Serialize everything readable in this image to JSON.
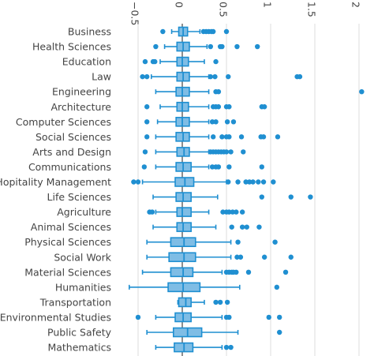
{
  "chart_data": {
    "type": "box",
    "orientation": "horizontal",
    "title": "",
    "xlabel": "",
    "ylabel": "",
    "xlim": [
      -0.62,
      2.05
    ],
    "x_ticks": [
      {
        "value": -0.5,
        "label": "−0.5"
      },
      {
        "value": 0,
        "label": "0"
      },
      {
        "value": 0.5,
        "label": "0.5"
      },
      {
        "value": 1,
        "label": "1"
      },
      {
        "value": 1.5,
        "label": "1.5"
      },
      {
        "value": 2,
        "label": "2"
      }
    ],
    "tick_position": "top",
    "tick_label_rotation": 90,
    "grid": true,
    "color": "#1f8fd1",
    "box_fill": "#7fbde5",
    "categories": [
      {
        "name": "Business",
        "whisker_low": -0.12,
        "q1": -0.04,
        "median": 0.01,
        "q3": 0.06,
        "whisker_high": 0.2,
        "outliers": [
          -0.22,
          0.24,
          0.27,
          0.3,
          0.33,
          0.35,
          0.5
        ]
      },
      {
        "name": "Health Sciences",
        "whisker_low": -0.2,
        "q1": -0.06,
        "median": 0.01,
        "q3": 0.08,
        "whisker_high": 0.28,
        "outliers": [
          -0.3,
          0.32,
          0.43,
          0.45,
          0.62,
          0.85
        ]
      },
      {
        "name": "Education",
        "whisker_low": -0.25,
        "q1": -0.06,
        "median": 0.0,
        "q3": 0.07,
        "whisker_high": 0.25,
        "outliers": [
          -0.42,
          -0.33,
          -0.31,
          0.38
        ]
      },
      {
        "name": "Law",
        "whisker_low": -0.35,
        "q1": -0.06,
        "median": 0.01,
        "q3": 0.08,
        "whisker_high": 0.3,
        "outliers": [
          -0.45,
          -0.4,
          0.32,
          0.37,
          0.52,
          1.3,
          1.33
        ]
      },
      {
        "name": "Engineering",
        "whisker_low": -0.3,
        "q1": -0.07,
        "median": 0.0,
        "q3": 0.08,
        "whisker_high": 0.3,
        "outliers": [
          0.38,
          0.41,
          2.03
        ]
      },
      {
        "name": "Architecture",
        "whisker_low": -0.25,
        "q1": -0.06,
        "median": 0.0,
        "q3": 0.07,
        "whisker_high": 0.3,
        "outliers": [
          -0.4,
          0.35,
          0.38,
          0.41,
          0.5,
          0.53,
          0.9,
          0.93
        ]
      },
      {
        "name": "Computer Sciences",
        "whisker_low": -0.28,
        "q1": -0.07,
        "median": 0.0,
        "q3": 0.08,
        "whisker_high": 0.3,
        "outliers": [
          -0.4,
          0.34,
          0.38,
          0.51,
          0.58
        ]
      },
      {
        "name": "Social Sciences",
        "whisker_low": -0.3,
        "q1": -0.07,
        "median": 0.01,
        "q3": 0.08,
        "whisker_high": 0.3,
        "outliers": [
          -0.4,
          0.35,
          0.45,
          0.5,
          0.53,
          0.67,
          0.89,
          0.92,
          1.08
        ]
      },
      {
        "name": "Arts and Design",
        "whisker_low": -0.3,
        "q1": -0.06,
        "median": 0.02,
        "q3": 0.08,
        "whisker_high": 0.3,
        "outliers": [
          -0.42,
          0.32,
          0.35,
          0.38,
          0.41,
          0.44,
          0.47,
          0.5,
          0.55,
          0.69
        ]
      },
      {
        "name": "Communications",
        "whisker_low": -0.3,
        "q1": -0.07,
        "median": 0.01,
        "q3": 0.1,
        "whisker_high": 0.3,
        "outliers": [
          -0.43,
          0.34,
          0.38,
          0.41,
          0.53,
          0.9
        ]
      },
      {
        "name": "Hopitality Management",
        "whisker_low": -0.45,
        "q1": -0.08,
        "median": 0.03,
        "q3": 0.13,
        "whisker_high": 0.5,
        "outliers": [
          -0.55,
          -0.5,
          0.52,
          0.63,
          0.72,
          0.76,
          0.8,
          0.86,
          0.92,
          1.03
        ]
      },
      {
        "name": "Life Sciences",
        "whisker_low": -0.33,
        "q1": -0.07,
        "median": 0.01,
        "q3": 0.1,
        "whisker_high": 0.4,
        "outliers": [
          0.9,
          1.23,
          1.45
        ]
      },
      {
        "name": "Agriculture",
        "whisker_low": -0.3,
        "q1": -0.06,
        "median": 0.0,
        "q3": 0.1,
        "whisker_high": 0.3,
        "outliers": [
          -0.37,
          -0.34,
          0.46,
          0.5,
          0.53,
          0.57,
          0.61,
          0.68
        ]
      },
      {
        "name": "Animal Sciences",
        "whisker_low": -0.33,
        "q1": -0.06,
        "median": 0.01,
        "q3": 0.1,
        "whisker_high": 0.38,
        "outliers": [
          0.56,
          0.68,
          0.73,
          0.87
        ]
      },
      {
        "name": "Physical Sciences",
        "whisker_low": -0.4,
        "q1": -0.13,
        "median": 0.02,
        "q3": 0.15,
        "whisker_high": 0.55,
        "outliers": [
          0.63,
          1.05
        ]
      },
      {
        "name": "Social Work",
        "whisker_low": -0.4,
        "q1": -0.15,
        "median": 0.02,
        "q3": 0.15,
        "whisker_high": 0.55,
        "outliers": [
          0.62,
          0.66,
          0.93,
          1.23
        ]
      },
      {
        "name": "Material Sciences",
        "whisker_low": -0.45,
        "q1": -0.13,
        "median": 0.01,
        "q3": 0.12,
        "whisker_high": 0.45,
        "outliers": [
          0.5,
          0.53,
          0.56,
          0.58,
          0.61,
          0.75,
          1.17
        ]
      },
      {
        "name": "Humanities",
        "whisker_low": -0.6,
        "q1": -0.16,
        "median": 0.01,
        "q3": 0.2,
        "whisker_high": 0.65,
        "outliers": [
          1.07
        ]
      },
      {
        "name": "Transportation",
        "whisker_low": -0.05,
        "q1": -0.04,
        "median": 0.04,
        "q3": 0.1,
        "whisker_high": 0.25,
        "outliers": [
          0.38,
          0.43,
          0.51
        ]
      },
      {
        "name": "Environmental Studies",
        "whisker_low": -0.3,
        "q1": -0.08,
        "median": 0.01,
        "q3": 0.1,
        "whisker_high": 0.45,
        "outliers": [
          -0.5,
          0.5,
          0.53,
          0.98,
          1.1
        ]
      },
      {
        "name": "Public Safety",
        "whisker_low": -0.4,
        "q1": -0.1,
        "median": 0.06,
        "q3": 0.22,
        "whisker_high": 0.63,
        "outliers": [
          1.1
        ]
      },
      {
        "name": "Mathematics",
        "whisker_low": -0.3,
        "q1": -0.09,
        "median": 0.02,
        "q3": 0.12,
        "whisker_high": 0.45,
        "outliers": [
          0.5,
          0.55
        ]
      }
    ]
  }
}
